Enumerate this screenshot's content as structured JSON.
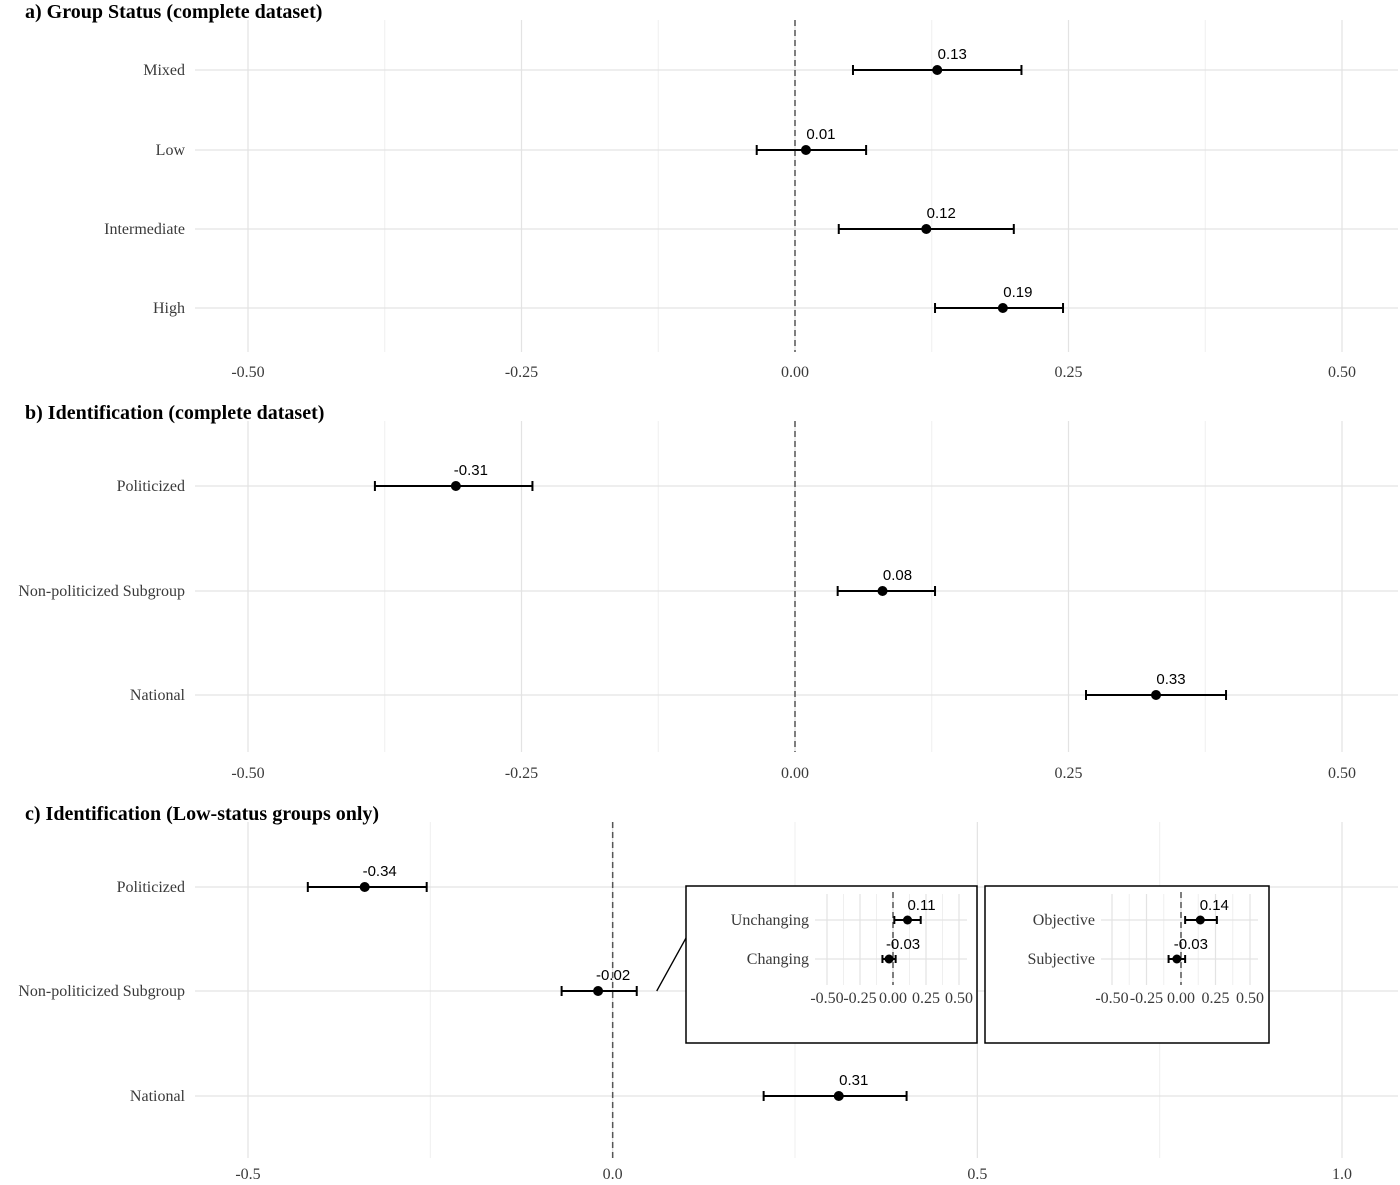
{
  "chart_data": [
    {
      "type": "scatter",
      "title": "a) Group Status (complete dataset)",
      "xlim": [
        -0.5,
        0.5
      ],
      "xticks": [
        "-0.50",
        "-0.25",
        "0.00",
        "0.25",
        "0.50"
      ],
      "grid": true,
      "reference_line_x": 0,
      "points": [
        {
          "category": "Mixed",
          "estimate": 0.13,
          "label": "0.13",
          "ci": [
            0.053,
            0.207
          ]
        },
        {
          "category": "Low",
          "estimate": 0.01,
          "label": "0.01",
          "ci": [
            -0.035,
            0.065
          ]
        },
        {
          "category": "Intermediate",
          "estimate": 0.12,
          "label": "0.12",
          "ci": [
            0.04,
            0.2
          ]
        },
        {
          "category": "High",
          "estimate": 0.19,
          "label": "0.19",
          "ci": [
            0.128,
            0.245
          ]
        }
      ]
    },
    {
      "type": "scatter",
      "title": "b) Identification (complete dataset)",
      "xlim": [
        -0.5,
        0.5
      ],
      "xticks": [
        "-0.50",
        "-0.25",
        "0.00",
        "0.25",
        "0.50"
      ],
      "grid": true,
      "reference_line_x": 0,
      "points": [
        {
          "category": "Politicized",
          "estimate": -0.31,
          "label": "-0.31",
          "ci": [
            -0.384,
            -0.24
          ]
        },
        {
          "category": "Non-politicized Subgroup",
          "estimate": 0.08,
          "label": "0.08",
          "ci": [
            0.039,
            0.128
          ]
        },
        {
          "category": "National",
          "estimate": 0.33,
          "label": "0.33",
          "ci": [
            0.266,
            0.394
          ]
        }
      ]
    },
    {
      "type": "scatter",
      "title": "c) Identification (Low-status groups only)",
      "xlim": [
        -0.5,
        1.0
      ],
      "xticks": [
        "-0.5",
        "0.0",
        "0.5",
        "1.0"
      ],
      "grid": true,
      "reference_line_x": 0,
      "points": [
        {
          "category": "Politicized",
          "estimate": -0.34,
          "label": "-0.34",
          "ci": [
            -0.418,
            -0.255
          ]
        },
        {
          "category": "Non-politicized Subgroup",
          "estimate": -0.02,
          "label": "-0.02",
          "ci": [
            -0.07,
            0.033
          ]
        },
        {
          "category": "National",
          "estimate": 0.31,
          "label": "0.31",
          "ci": [
            0.207,
            0.403
          ]
        }
      ],
      "insets": [
        {
          "xlim": [
            -0.5,
            0.5
          ],
          "xticks": [
            "-0.50",
            "-0.25",
            "0.00",
            "0.25",
            "0.50"
          ],
          "points": [
            {
              "category": "Unchanging",
              "estimate": 0.11,
              "label": "0.11",
              "ci": [
                0.01,
                0.21
              ]
            },
            {
              "category": "Changing",
              "estimate": -0.03,
              "label": "-0.03",
              "ci": [
                -0.08,
                0.02
              ]
            }
          ]
        },
        {
          "xlim": [
            -0.5,
            0.5
          ],
          "xticks": [
            "-0.50",
            "-0.25",
            "0.00",
            "0.25",
            "0.50"
          ],
          "points": [
            {
              "category": "Objective",
              "estimate": 0.14,
              "label": "0.14",
              "ci": [
                0.03,
                0.26
              ]
            },
            {
              "category": "Subjective",
              "estimate": -0.03,
              "label": "-0.03",
              "ci": [
                -0.09,
                0.03
              ]
            }
          ]
        }
      ]
    }
  ]
}
